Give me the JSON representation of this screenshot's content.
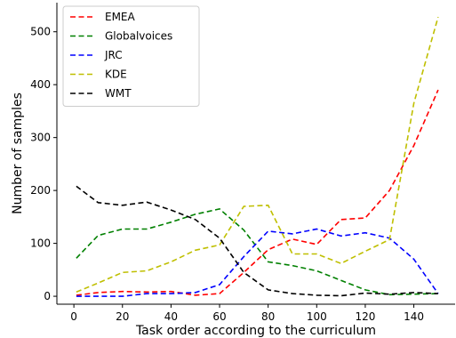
{
  "chart_data": {
    "type": "line",
    "xlabel": "Task order according to the curriculum",
    "ylabel": "Number of samples",
    "xlim": [
      -7,
      157
    ],
    "ylim": [
      -15,
      555
    ],
    "xticks": [
      0,
      20,
      40,
      60,
      80,
      100,
      120,
      140
    ],
    "yticks": [
      0,
      100,
      200,
      300,
      400,
      500
    ],
    "grid": false,
    "legend_position": "top-left",
    "x": [
      1,
      10,
      20,
      30,
      40,
      50,
      60,
      70,
      80,
      90,
      100,
      110,
      120,
      130,
      140,
      150
    ],
    "series": [
      {
        "name": "EMEA",
        "color": "#ff0000",
        "values": [
          2,
          7,
          9,
          8,
          9,
          2,
          5,
          45,
          88,
          108,
          98,
          145,
          148,
          200,
          285,
          390
        ]
      },
      {
        "name": "Globalvoices",
        "color": "#008000",
        "values": [
          72,
          115,
          127,
          127,
          140,
          155,
          165,
          125,
          65,
          58,
          48,
          30,
          12,
          3,
          4,
          5
        ]
      },
      {
        "name": "JRC",
        "color": "#0000ff",
        "values": [
          0,
          0,
          0,
          5,
          5,
          7,
          22,
          75,
          123,
          118,
          127,
          114,
          120,
          110,
          70,
          5
        ]
      },
      {
        "name": "KDE",
        "color": "#bfbf00",
        "values": [
          8,
          25,
          45,
          48,
          65,
          87,
          97,
          170,
          172,
          80,
          80,
          62,
          85,
          107,
          365,
          528
        ]
      },
      {
        "name": "WMT",
        "color": "#000000",
        "values": [
          208,
          177,
          172,
          178,
          163,
          145,
          110,
          45,
          12,
          5,
          2,
          1,
          6,
          4,
          7,
          5
        ]
      }
    ]
  }
}
